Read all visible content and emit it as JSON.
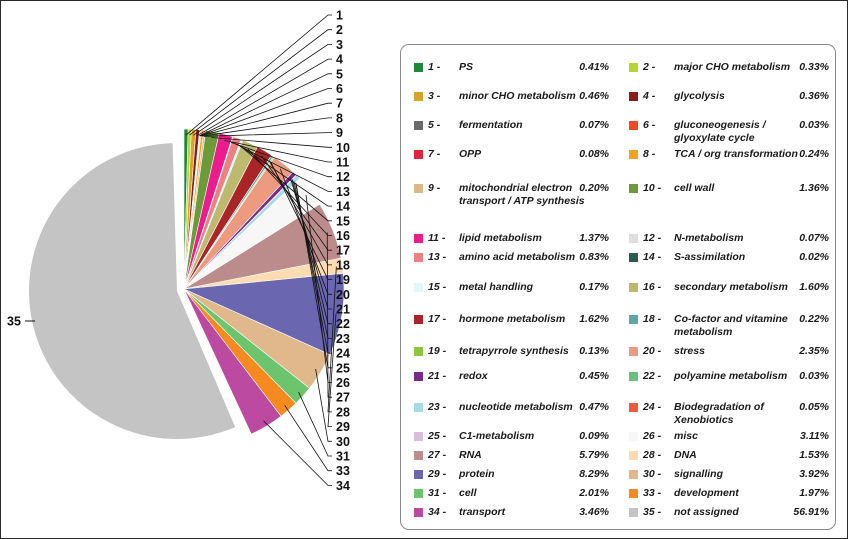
{
  "chart_data": {
    "type": "pie",
    "title": "",
    "legend_placement": "right",
    "categories": [
      {
        "id": "1",
        "name": "PS",
        "value": 0.41,
        "label": "0.41%",
        "color": "#1a8a3a"
      },
      {
        "id": "2",
        "name": "major CHO metabolism",
        "value": 0.33,
        "label": "0.33%",
        "color": "#b8d430"
      },
      {
        "id": "3",
        "name": "minor CHO metabolism",
        "value": 0.46,
        "label": "0.46%",
        "color": "#d9a22a"
      },
      {
        "id": "4",
        "name": "glycolysis",
        "value": 0.36,
        "label": "0.36%",
        "color": "#8b1c1c"
      },
      {
        "id": "5",
        "name": "fermentation",
        "value": 0.07,
        "label": "0.07%",
        "color": "#6a6a6a"
      },
      {
        "id": "6",
        "name": "gluconeogenesis / glyoxylate cycle",
        "value": 0.03,
        "label": "0.03%",
        "color": "#ef4a22"
      },
      {
        "id": "7",
        "name": "OPP",
        "value": 0.08,
        "label": "0.08%",
        "color": "#e0243c"
      },
      {
        "id": "8",
        "name": "TCA / org transformation",
        "value": 0.24,
        "label": "0.24%",
        "color": "#f5a020"
      },
      {
        "id": "9",
        "name": "mitochondrial electron transport / ATP synthesis",
        "value": 0.2,
        "label": "0.20%",
        "color": "#d7b98a"
      },
      {
        "id": "10",
        "name": "cell wall",
        "value": 1.36,
        "label": "1.36%",
        "color": "#6a9a3a"
      },
      {
        "id": "11",
        "name": "lipid metabolism",
        "value": 1.37,
        "label": "1.37%",
        "color": "#ec1c8c"
      },
      {
        "id": "12",
        "name": "N-metabolism",
        "value": 0.07,
        "label": "0.07%",
        "color": "#dedede"
      },
      {
        "id": "13",
        "name": "amino acid metabolism",
        "value": 0.83,
        "label": "0.83%",
        "color": "#f08080"
      },
      {
        "id": "14",
        "name": "S-assimilation",
        "value": 0.02,
        "label": "0.02%",
        "color": "#2a5a52"
      },
      {
        "id": "15",
        "name": "metal handling",
        "value": 0.17,
        "label": "0.17%",
        "color": "#e4f6fa"
      },
      {
        "id": "16",
        "name": "secondary metabolism",
        "value": 1.6,
        "label": "1.60%",
        "color": "#bdba70"
      },
      {
        "id": "17",
        "name": "hormone metabolism",
        "value": 1.62,
        "label": "1.62%",
        "color": "#aa2428"
      },
      {
        "id": "18",
        "name": "Co-factor and vitamine metabolism",
        "value": 0.22,
        "label": "0.22%",
        "color": "#5ea8a8"
      },
      {
        "id": "19",
        "name": "tetrapyrrole synthesis",
        "value": 0.13,
        "label": "0.13%",
        "color": "#8cc83c"
      },
      {
        "id": "20",
        "name": "stress",
        "value": 2.35,
        "label": "2.35%",
        "color": "#ec9a80"
      },
      {
        "id": "21",
        "name": "redox",
        "value": 0.45,
        "label": "0.45%",
        "color": "#7a2a8a"
      },
      {
        "id": "22",
        "name": "polyamine metabolism",
        "value": 0.03,
        "label": "0.03%",
        "color": "#6ac080"
      },
      {
        "id": "23",
        "name": "nucleotide metabolism",
        "value": 0.47,
        "label": "0.47%",
        "color": "#a8dce4"
      },
      {
        "id": "24",
        "name": "Biodegradation of Xenobiotics",
        "value": 0.05,
        "label": "0.05%",
        "color": "#ee5a3a"
      },
      {
        "id": "25",
        "name": "C1-metabolism",
        "value": 0.09,
        "label": "0.09%",
        "color": "#dcbcdc"
      },
      {
        "id": "26",
        "name": "misc",
        "value": 3.11,
        "label": "3.11%",
        "color": "#f7f7f7"
      },
      {
        "id": "27",
        "name": "RNA",
        "value": 5.79,
        "label": "5.79%",
        "color": "#bc8c8c"
      },
      {
        "id": "28",
        "name": "DNA",
        "value": 1.53,
        "label": "1.53%",
        "color": "#fcdcb0"
      },
      {
        "id": "29",
        "name": "protein",
        "value": 8.29,
        "label": "8.29%",
        "color": "#6a66b0"
      },
      {
        "id": "30",
        "name": "signalling",
        "value": 3.92,
        "label": "3.92%",
        "color": "#e0b88c"
      },
      {
        "id": "31",
        "name": "cell",
        "value": 2.01,
        "label": "2.01%",
        "color": "#6cc46c"
      },
      {
        "id": "33",
        "name": "development",
        "value": 1.97,
        "label": "1.97%",
        "color": "#f58a20"
      },
      {
        "id": "34",
        "name": "transport",
        "value": 3.46,
        "label": "3.46%",
        "color": "#bc4aa0"
      },
      {
        "id": "35",
        "name": "not assigned",
        "value": 56.91,
        "label": "56.91%",
        "color": "#c4c4c4"
      }
    ]
  }
}
